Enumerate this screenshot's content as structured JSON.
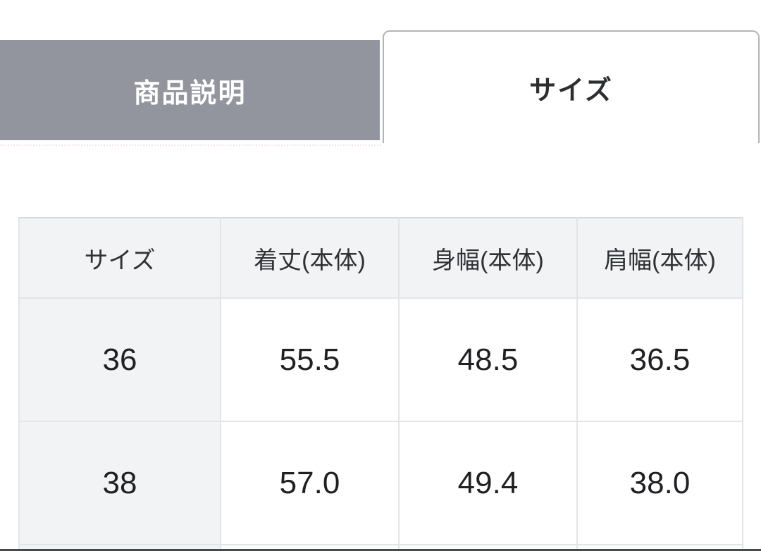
{
  "tabs": [
    {
      "label": "商品説明",
      "active": false
    },
    {
      "label": "サイズ",
      "active": true
    }
  ],
  "size_table": {
    "headers": [
      "サイズ",
      "着丈(本体)",
      "身幅(本体)",
      "肩幅(本体)"
    ],
    "rows": [
      [
        "36",
        "55.5",
        "48.5",
        "36.5"
      ],
      [
        "38",
        "57.0",
        "49.4",
        "38.0"
      ]
    ]
  },
  "colors": {
    "inactive_tab_bg": "#92959d",
    "inactive_tab_text": "#ffffff",
    "active_tab_border": "#b2b4b9",
    "active_tab_text": "#2d2e31",
    "table_header_bg": "#f2f3f5",
    "table_border": "#e2e5e8",
    "cell_text": "#1f2023",
    "bottom_bar": "#48494b"
  }
}
